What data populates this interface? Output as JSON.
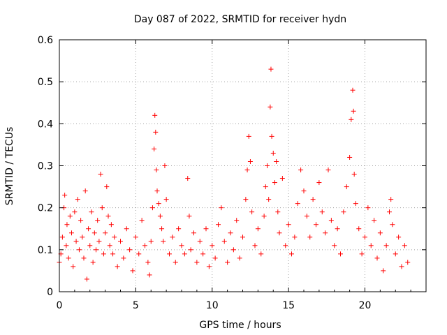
{
  "chart_data": {
    "type": "scatter",
    "title": "Day 087 of 2022, SRMTID for receiver hydn",
    "xlabel": "GPS time / hours",
    "ylabel": "SRMTID / TECUs",
    "xlim": [
      0,
      24
    ],
    "ylim": [
      0,
      0.6
    ],
    "xticks": [
      0,
      5,
      10,
      15,
      20
    ],
    "xtick_labels": [
      "0",
      "5",
      "10",
      "15",
      "20"
    ],
    "yticks": [
      0,
      0.1,
      0.2,
      0.3,
      0.4,
      0.5,
      0.6
    ],
    "ytick_labels": [
      "0",
      "0.1",
      "0.2",
      "0.3",
      "0.4",
      "0.5",
      "0.6"
    ],
    "grid": true,
    "marker": "+",
    "color": "#ff0000",
    "series": [
      {
        "name": "hydn",
        "points": [
          [
            0.0,
            0.07
          ],
          [
            0.1,
            0.09
          ],
          [
            0.2,
            0.13
          ],
          [
            0.3,
            0.2
          ],
          [
            0.35,
            0.23
          ],
          [
            0.45,
            0.11
          ],
          [
            0.5,
            0.16
          ],
          [
            0.6,
            0.08
          ],
          [
            0.7,
            0.18
          ],
          [
            0.8,
            0.14
          ],
          [
            0.9,
            0.06
          ],
          [
            1.0,
            0.19
          ],
          [
            1.1,
            0.12
          ],
          [
            1.2,
            0.22
          ],
          [
            1.3,
            0.1
          ],
          [
            1.4,
            0.17
          ],
          [
            1.5,
            0.13
          ],
          [
            1.6,
            0.08
          ],
          [
            1.7,
            0.24
          ],
          [
            1.8,
            0.03
          ],
          [
            1.9,
            0.15
          ],
          [
            2.0,
            0.11
          ],
          [
            2.1,
            0.19
          ],
          [
            2.2,
            0.07
          ],
          [
            2.3,
            0.14
          ],
          [
            2.4,
            0.1
          ],
          [
            2.5,
            0.17
          ],
          [
            2.6,
            0.12
          ],
          [
            2.7,
            0.28
          ],
          [
            2.8,
            0.2
          ],
          [
            2.9,
            0.09
          ],
          [
            3.0,
            0.14
          ],
          [
            3.1,
            0.25
          ],
          [
            3.2,
            0.18
          ],
          [
            3.3,
            0.11
          ],
          [
            3.4,
            0.16
          ],
          [
            3.5,
            0.09
          ],
          [
            3.6,
            0.13
          ],
          [
            3.8,
            0.06
          ],
          [
            4.0,
            0.12
          ],
          [
            4.2,
            0.08
          ],
          [
            4.4,
            0.15
          ],
          [
            4.6,
            0.1
          ],
          [
            4.8,
            0.05
          ],
          [
            5.0,
            0.13
          ],
          [
            5.2,
            0.09
          ],
          [
            5.4,
            0.17
          ],
          [
            5.6,
            0.11
          ],
          [
            5.8,
            0.07
          ],
          [
            5.9,
            0.04
          ],
          [
            6.0,
            0.12
          ],
          [
            6.1,
            0.2
          ],
          [
            6.2,
            0.34
          ],
          [
            6.25,
            0.42
          ],
          [
            6.3,
            0.38
          ],
          [
            6.35,
            0.29
          ],
          [
            6.4,
            0.24
          ],
          [
            6.5,
            0.21
          ],
          [
            6.6,
            0.18
          ],
          [
            6.7,
            0.15
          ],
          [
            6.8,
            0.12
          ],
          [
            6.9,
            0.3
          ],
          [
            7.0,
            0.22
          ],
          [
            7.2,
            0.09
          ],
          [
            7.4,
            0.13
          ],
          [
            7.6,
            0.07
          ],
          [
            7.8,
            0.15
          ],
          [
            8.0,
            0.11
          ],
          [
            8.2,
            0.09
          ],
          [
            8.4,
            0.27
          ],
          [
            8.5,
            0.18
          ],
          [
            8.6,
            0.1
          ],
          [
            8.8,
            0.14
          ],
          [
            9.0,
            0.07
          ],
          [
            9.2,
            0.12
          ],
          [
            9.4,
            0.09
          ],
          [
            9.6,
            0.15
          ],
          [
            9.8,
            0.06
          ],
          [
            10.0,
            0.11
          ],
          [
            10.2,
            0.08
          ],
          [
            10.4,
            0.16
          ],
          [
            10.6,
            0.2
          ],
          [
            10.8,
            0.12
          ],
          [
            11.0,
            0.07
          ],
          [
            11.2,
            0.14
          ],
          [
            11.4,
            0.1
          ],
          [
            11.6,
            0.17
          ],
          [
            11.8,
            0.08
          ],
          [
            12.0,
            0.13
          ],
          [
            12.2,
            0.22
          ],
          [
            12.3,
            0.29
          ],
          [
            12.4,
            0.37
          ],
          [
            12.5,
            0.31
          ],
          [
            12.6,
            0.19
          ],
          [
            12.8,
            0.11
          ],
          [
            13.0,
            0.15
          ],
          [
            13.2,
            0.09
          ],
          [
            13.4,
            0.18
          ],
          [
            13.5,
            0.25
          ],
          [
            13.6,
            0.3
          ],
          [
            13.7,
            0.22
          ],
          [
            13.8,
            0.44
          ],
          [
            13.85,
            0.53
          ],
          [
            13.9,
            0.37
          ],
          [
            14.0,
            0.33
          ],
          [
            14.1,
            0.26
          ],
          [
            14.2,
            0.31
          ],
          [
            14.3,
            0.19
          ],
          [
            14.4,
            0.14
          ],
          [
            14.6,
            0.27
          ],
          [
            14.8,
            0.11
          ],
          [
            15.0,
            0.16
          ],
          [
            15.2,
            0.09
          ],
          [
            15.4,
            0.13
          ],
          [
            15.6,
            0.21
          ],
          [
            15.8,
            0.29
          ],
          [
            16.0,
            0.24
          ],
          [
            16.2,
            0.18
          ],
          [
            16.4,
            0.13
          ],
          [
            16.6,
            0.22
          ],
          [
            16.8,
            0.16
          ],
          [
            17.0,
            0.26
          ],
          [
            17.2,
            0.19
          ],
          [
            17.4,
            0.14
          ],
          [
            17.6,
            0.29
          ],
          [
            17.8,
            0.17
          ],
          [
            18.0,
            0.11
          ],
          [
            18.2,
            0.15
          ],
          [
            18.4,
            0.09
          ],
          [
            18.6,
            0.19
          ],
          [
            18.8,
            0.25
          ],
          [
            19.0,
            0.32
          ],
          [
            19.1,
            0.41
          ],
          [
            19.2,
            0.48
          ],
          [
            19.25,
            0.43
          ],
          [
            19.3,
            0.28
          ],
          [
            19.4,
            0.21
          ],
          [
            19.6,
            0.15
          ],
          [
            19.8,
            0.09
          ],
          [
            20.0,
            0.13
          ],
          [
            20.2,
            0.2
          ],
          [
            20.4,
            0.11
          ],
          [
            20.6,
            0.17
          ],
          [
            20.8,
            0.08
          ],
          [
            21.0,
            0.14
          ],
          [
            21.2,
            0.05
          ],
          [
            21.4,
            0.11
          ],
          [
            21.6,
            0.19
          ],
          [
            21.7,
            0.22
          ],
          [
            21.8,
            0.16
          ],
          [
            22.0,
            0.09
          ],
          [
            22.2,
            0.13
          ],
          [
            22.4,
            0.06
          ],
          [
            22.6,
            0.11
          ],
          [
            22.8,
            0.07
          ]
        ]
      }
    ]
  }
}
